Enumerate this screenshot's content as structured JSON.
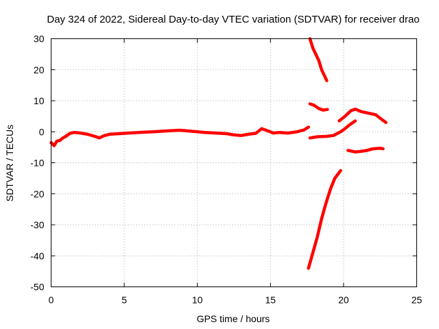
{
  "chart_data": {
    "type": "line",
    "title": "Day 324 of 2022, Sidereal Day-to-day VTEC variation (SDTVAR) for receiver drao",
    "xlabel": "GPS time / hours",
    "ylabel": "SDTVAR / TECUs",
    "xlim": [
      0,
      25
    ],
    "ylim": [
      -50,
      30
    ],
    "xticks": [
      0,
      5,
      10,
      15,
      20,
      25
    ],
    "yticks": [
      -50,
      -40,
      -30,
      -20,
      -10,
      0,
      10,
      20,
      30
    ],
    "grid": true,
    "series": [
      {
        "name": "main-trace",
        "color": "#ff0000",
        "points": [
          [
            0.0,
            -3.5
          ],
          [
            0.2,
            -4.5
          ],
          [
            0.4,
            -3.0
          ],
          [
            0.6,
            -2.8
          ],
          [
            0.8,
            -2.0
          ],
          [
            1.0,
            -1.5
          ],
          [
            1.3,
            -0.5
          ],
          [
            1.6,
            -0.2
          ],
          [
            2.0,
            -0.4
          ],
          [
            2.5,
            -0.8
          ],
          [
            3.0,
            -1.5
          ],
          [
            3.3,
            -2.0
          ],
          [
            3.6,
            -1.3
          ],
          [
            4.0,
            -0.8
          ],
          [
            5.0,
            -0.5
          ],
          [
            6.0,
            -0.2
          ],
          [
            7.0,
            0.0
          ],
          [
            8.0,
            0.3
          ],
          [
            8.8,
            0.5
          ],
          [
            9.5,
            0.2
          ],
          [
            10.5,
            -0.2
          ],
          [
            11.3,
            -0.4
          ],
          [
            12.0,
            -0.6
          ],
          [
            12.5,
            -1.0
          ],
          [
            13.0,
            -1.2
          ],
          [
            13.5,
            -0.8
          ],
          [
            14.0,
            -0.5
          ],
          [
            14.4,
            1.0
          ],
          [
            14.7,
            0.5
          ],
          [
            15.2,
            -0.4
          ],
          [
            15.6,
            -0.2
          ],
          [
            16.2,
            -0.4
          ],
          [
            16.8,
            0.0
          ],
          [
            17.3,
            0.6
          ],
          [
            17.6,
            1.5
          ]
        ]
      },
      {
        "name": "upper-descending",
        "color": "#ff0000",
        "points": [
          [
            17.7,
            30.0
          ],
          [
            17.9,
            27.0
          ],
          [
            18.1,
            25.0
          ],
          [
            18.3,
            23.0
          ],
          [
            18.5,
            20.0
          ],
          [
            18.7,
            18.0
          ],
          [
            18.85,
            16.5
          ]
        ]
      },
      {
        "name": "segment-near-8",
        "color": "#ff0000",
        "points": [
          [
            17.7,
            9.0
          ],
          [
            18.0,
            8.5
          ],
          [
            18.3,
            7.5
          ],
          [
            18.6,
            7.0
          ],
          [
            18.9,
            7.2
          ]
        ]
      },
      {
        "name": "segment-near-minus-2",
        "color": "#ff0000",
        "points": [
          [
            17.7,
            -2.0
          ],
          [
            18.2,
            -1.6
          ],
          [
            18.8,
            -1.5
          ],
          [
            19.3,
            -1.2
          ],
          [
            19.8,
            0.0
          ],
          [
            20.1,
            1.0
          ],
          [
            20.4,
            2.2
          ],
          [
            20.8,
            3.5
          ]
        ]
      },
      {
        "name": "steep-rise",
        "color": "#ff0000",
        "points": [
          [
            17.6,
            -44.0
          ],
          [
            17.9,
            -39.0
          ],
          [
            18.2,
            -34.0
          ],
          [
            18.5,
            -28.0
          ],
          [
            18.8,
            -23.0
          ],
          [
            19.1,
            -18.5
          ],
          [
            19.4,
            -15.0
          ],
          [
            19.8,
            -12.5
          ]
        ]
      },
      {
        "name": "upper-right-arc",
        "color": "#ff0000",
        "points": [
          [
            19.7,
            3.5
          ],
          [
            20.1,
            5.0
          ],
          [
            20.5,
            6.8
          ],
          [
            20.8,
            7.3
          ],
          [
            21.2,
            6.5
          ],
          [
            21.7,
            6.0
          ],
          [
            22.2,
            5.5
          ],
          [
            22.6,
            4.0
          ],
          [
            22.9,
            3.0
          ]
        ]
      },
      {
        "name": "lower-right-flat",
        "color": "#ff0000",
        "points": [
          [
            20.3,
            -6.0
          ],
          [
            20.8,
            -6.5
          ],
          [
            21.2,
            -6.3
          ],
          [
            21.6,
            -6.0
          ],
          [
            22.0,
            -5.5
          ],
          [
            22.5,
            -5.3
          ],
          [
            22.7,
            -5.5
          ]
        ]
      }
    ]
  }
}
